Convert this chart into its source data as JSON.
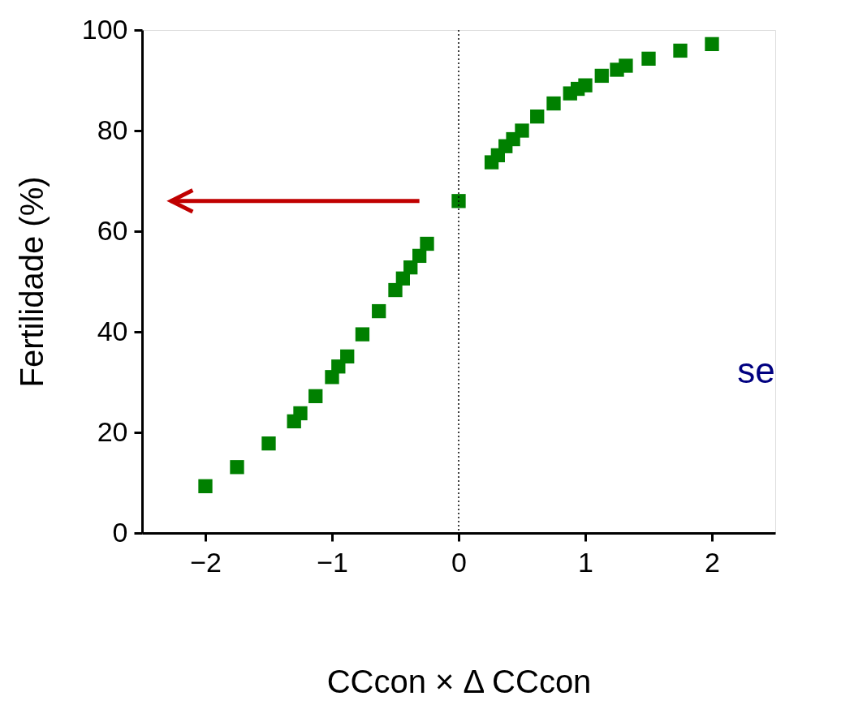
{
  "chart_data": {
    "type": "scatter",
    "xlabel": "CCcon × Δ CCcon",
    "ylabel": "Fertilidade (%)",
    "x": [
      -2,
      -1.75,
      -1.5,
      -1.3,
      -1.25,
      -1.13,
      -1,
      -0.95,
      -0.88,
      -0.76,
      -0.63,
      -0.5,
      -0.44,
      -0.38,
      -0.31,
      -0.25,
      0,
      0.26,
      0.31,
      0.37,
      0.43,
      0.5,
      0.62,
      0.75,
      0.88,
      0.94,
      1,
      1.13,
      1.25,
      1.32,
      1.5,
      1.75,
      2
    ],
    "series": [
      {
        "color": "#008000",
        "values": [
          9.3,
          13.1,
          17.8,
          22.2,
          23.8,
          27.2,
          31,
          33.1,
          35.1,
          39.5,
          44.1,
          48.3,
          50.6,
          52.8,
          55.1,
          57.5,
          66,
          73.7,
          75.1,
          76.9,
          78.3,
          80,
          82.8,
          85.4,
          87.4,
          88.3,
          89,
          90.9,
          92.1,
          92.9,
          94.3,
          95.9,
          97.2
        ]
      }
    ],
    "marker": "square",
    "xlim": [
      -2.5,
      2.5
    ],
    "xticks": [
      -2,
      -1,
      0,
      1,
      2
    ],
    "ylim": [
      0,
      100
    ],
    "yticks": [
      0,
      20,
      40,
      60,
      80,
      100
    ],
    "ref_lines": [
      {
        "axis": "x",
        "value": 0,
        "line_style": "dotted",
        "color": "#000000"
      }
    ],
    "annotations": [
      "se"
    ],
    "grid": false
  }
}
